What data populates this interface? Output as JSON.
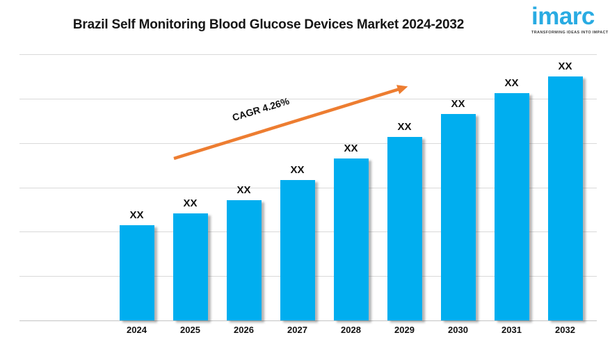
{
  "header": {
    "title": "Brazil Self Monitoring Blood Glucose Devices Market 2024-2032",
    "logo": {
      "text": "imarc",
      "tagline": "TRANSFORMING IDEAS INTO IMPACT"
    }
  },
  "colors": {
    "bar": "#00AEEF",
    "arrow": "#ED7D31",
    "logo_blue": "#29ABE2",
    "gridline": "#D9D9D9",
    "text": "#1A1A1A"
  },
  "chart_data": {
    "type": "bar",
    "title": "Brazil Self Monitoring Blood Glucose Devices Market 2024-2032",
    "categories": [
      "2024",
      "2025",
      "2026",
      "2027",
      "2028",
      "2029",
      "2030",
      "2031",
      "2032"
    ],
    "value_labels": [
      "XX",
      "XX",
      "XX",
      "XX",
      "XX",
      "XX",
      "XX",
      "XX",
      "XX"
    ],
    "values_masked": true,
    "bar_heights_pct": [
      35.7,
      40.3,
      45.1,
      52.7,
      60.8,
      68.9,
      77.5,
      85.5,
      91.6
    ],
    "annotation": {
      "type": "trend-arrow",
      "label": "CAGR 4.26%"
    },
    "xlabel": "",
    "ylabel": "",
    "y_axis_tick_labels_visible": false,
    "gridline_count": 7,
    "grid": true,
    "legend": "none"
  }
}
